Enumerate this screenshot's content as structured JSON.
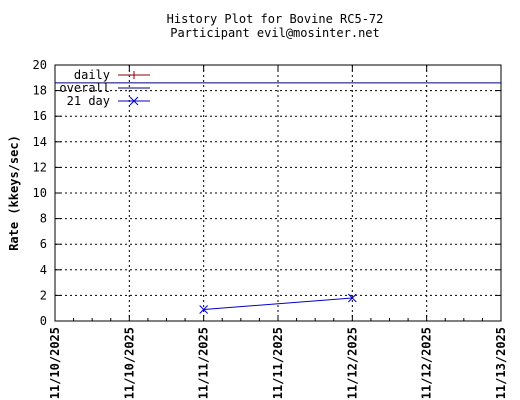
{
  "chart_data": {
    "type": "line",
    "title": "History Plot for Bovine RC5-72",
    "subtitle": "Participant evil@mosinter.net",
    "xlabel": "",
    "ylabel": "Rate (kkeys/sec)",
    "ylim": [
      0,
      20
    ],
    "y_ticks": [
      0,
      2,
      4,
      6,
      8,
      10,
      12,
      14,
      16,
      18,
      20
    ],
    "xlim": [
      "2025-11-10T00:00",
      "2025-11-13T00:00"
    ],
    "x_tick_labels": [
      "11/10/2025",
      "11/10/2025",
      "11/11/2025",
      "11/11/2025",
      "11/12/2025",
      "11/12/2025",
      "11/13/2025"
    ],
    "grid": true,
    "legend_position": "top-left",
    "series": [
      {
        "name": "daily",
        "color": "#8b0000",
        "marker": "plus",
        "points": []
      },
      {
        "name": "overall",
        "color": "#000080",
        "marker": "none",
        "points": [
          {
            "x": "2025-11-10T00:00",
            "y": 18.6
          },
          {
            "x": "2025-11-13T00:00",
            "y": 18.6
          }
        ]
      },
      {
        "name": "21 day",
        "color": "#0000cd",
        "marker": "cross",
        "points": [
          {
            "x": "2025-11-11T00:00",
            "y": 0.9
          },
          {
            "x": "2025-11-12T00:00",
            "y": 1.8
          }
        ]
      }
    ]
  }
}
